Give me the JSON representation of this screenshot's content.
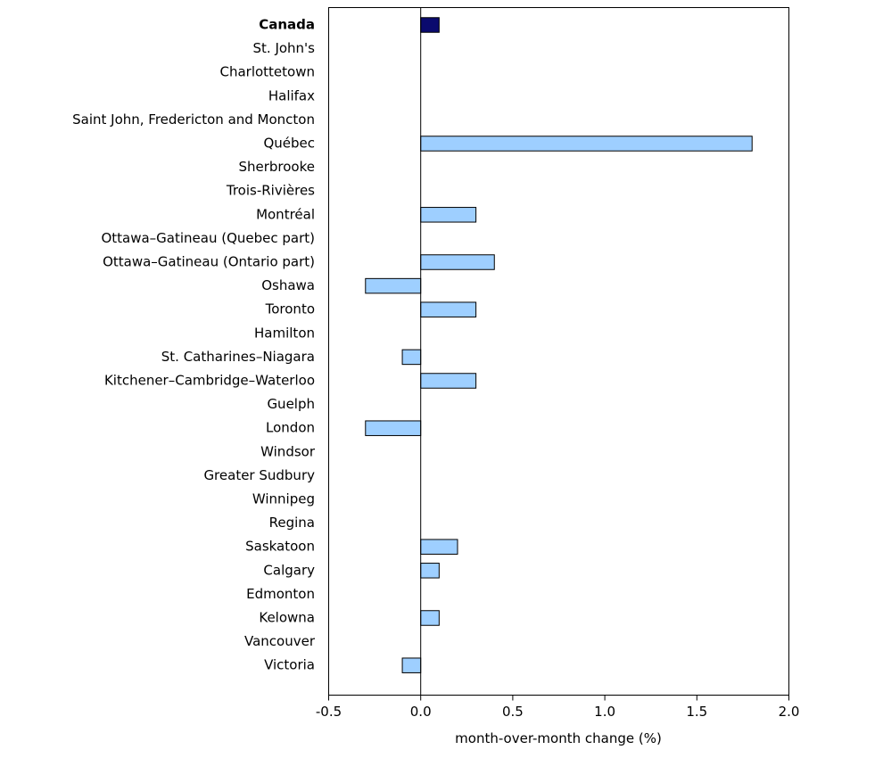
{
  "colors": {
    "highlight": "#0a0a6e",
    "bar": "#9ecfff",
    "stroke": "#000000"
  },
  "chart_data": {
    "type": "bar",
    "orientation": "horizontal",
    "title": "",
    "xlabel": "month-over-month change (%)",
    "ylabel": "",
    "xlim": [
      -0.5,
      2.0
    ],
    "xticks": [
      -0.5,
      0.0,
      0.5,
      1.0,
      1.5,
      2.0
    ],
    "xtick_labels": [
      "-0.5",
      "0.0",
      "0.5",
      "1.0",
      "1.5",
      "2.0"
    ],
    "grid": false,
    "highlight_category": "Canada",
    "categories": [
      "Canada",
      "St. John's",
      "Charlottetown",
      "Halifax",
      "Saint John, Fredericton and Moncton",
      "Québec",
      "Sherbrooke",
      "Trois-Rivières",
      "Montréal",
      "Ottawa–Gatineau (Quebec part)",
      "Ottawa–Gatineau (Ontario part)",
      "Oshawa",
      "Toronto",
      "Hamilton",
      "St. Catharines–Niagara",
      "Kitchener–Cambridge–Waterloo",
      "Guelph",
      "London",
      "Windsor",
      "Greater Sudbury",
      "Winnipeg",
      "Regina",
      "Saskatoon",
      "Calgary",
      "Edmonton",
      "Kelowna",
      "Vancouver",
      "Victoria"
    ],
    "values": [
      0.1,
      0.0,
      0.0,
      0.0,
      0.0,
      1.8,
      0.0,
      0.0,
      0.3,
      0.0,
      0.4,
      -0.3,
      0.3,
      0.0,
      -0.1,
      0.3,
      0.0,
      -0.3,
      0.0,
      0.0,
      0.0,
      0.0,
      0.2,
      0.1,
      0.0,
      0.1,
      0.0,
      -0.1
    ]
  }
}
